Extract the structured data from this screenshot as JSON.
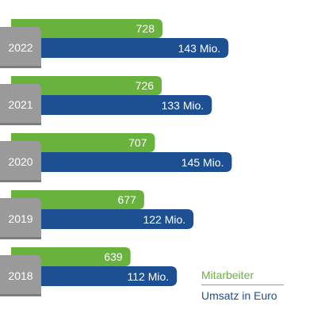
{
  "colors": {
    "employees": "#6ab23e",
    "revenue": "#1d4f93",
    "year_box": "#9a9a9a",
    "year_box_shadow": "#7c7c7c"
  },
  "chart_data": {
    "type": "bar",
    "categories": [
      "2022",
      "2021",
      "2020",
      "2019",
      "2018"
    ],
    "series": [
      {
        "name": "Mitarbeiter",
        "values": [
          728,
          726,
          707,
          677,
          639
        ],
        "labels": [
          "728",
          "726",
          "707",
          "677",
          "639"
        ]
      },
      {
        "name": "Umsatz in Euro",
        "values": [
          143,
          133,
          145,
          122,
          112
        ],
        "labels": [
          "143 Mio.",
          "133 Mio.",
          "145 Mio.",
          "122 Mio.",
          "112 Mio."
        ]
      }
    ],
    "legend_position": "bottom-right",
    "grid": false
  },
  "legend": {
    "employees_label": "Mitarbeiter",
    "revenue_label": "Umsatz in Euro"
  }
}
